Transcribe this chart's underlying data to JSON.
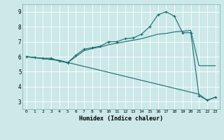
{
  "title": "",
  "xlabel": "Humidex (Indice chaleur)",
  "xlim": [
    -0.5,
    23.5
  ],
  "ylim": [
    2.5,
    9.5
  ],
  "xticks": [
    0,
    1,
    2,
    3,
    4,
    5,
    6,
    7,
    8,
    9,
    10,
    11,
    12,
    13,
    14,
    15,
    16,
    17,
    18,
    19,
    20,
    21,
    22,
    23
  ],
  "yticks": [
    3,
    4,
    5,
    6,
    7,
    8,
    9
  ],
  "bg_color": "#cce8e8",
  "grid_color": "#b0d0d0",
  "line_color": "#1a6b6b",
  "line1_x": [
    0,
    1,
    2,
    3,
    4,
    5,
    6,
    7,
    8,
    9,
    10,
    11,
    12,
    13,
    14,
    15,
    16,
    17,
    18,
    19,
    20,
    21,
    22,
    23
  ],
  "line1_y": [
    6.0,
    5.95,
    5.9,
    5.9,
    5.7,
    5.6,
    6.1,
    6.5,
    6.6,
    6.7,
    7.0,
    7.0,
    7.2,
    7.25,
    7.5,
    8.0,
    8.8,
    9.0,
    8.7,
    7.6,
    7.6,
    3.4,
    3.1,
    3.3
  ],
  "line2_x": [
    0,
    4,
    5,
    6,
    7,
    8,
    9,
    10,
    11,
    12,
    13,
    14,
    15,
    16,
    17,
    18,
    19,
    20,
    21,
    22,
    23
  ],
  "line2_y": [
    6.0,
    5.75,
    5.6,
    6.0,
    6.4,
    6.55,
    6.65,
    6.8,
    6.9,
    7.0,
    7.1,
    7.2,
    7.35,
    7.5,
    7.55,
    7.65,
    7.7,
    7.75,
    5.4,
    5.4,
    5.4
  ],
  "line3_x": [
    0,
    4,
    21,
    22,
    23
  ],
  "line3_y": [
    6.0,
    5.75,
    3.5,
    3.1,
    3.3
  ]
}
